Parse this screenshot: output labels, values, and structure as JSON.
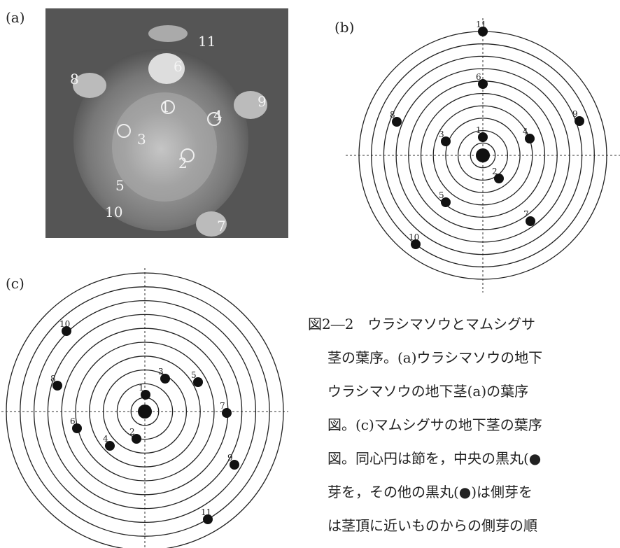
{
  "panels": {
    "a": {
      "label": "(a)",
      "points": [
        "1",
        "2",
        "3",
        "4",
        "5",
        "6",
        "7",
        "8",
        "9",
        "10",
        "11"
      ]
    },
    "b": {
      "label": "(b)",
      "points": [
        "1",
        "2",
        "3",
        "4",
        "5",
        "6",
        "7",
        "8",
        "9",
        "10",
        "11"
      ]
    },
    "c": {
      "label": "(c)",
      "points": [
        "1",
        "2",
        "3",
        "4",
        "5",
        "6",
        "7",
        "8",
        "9",
        "10",
        "11"
      ]
    }
  },
  "caption": {
    "lines": [
      "図2―2　ウラシマソウとマムシグサ",
      "茎の葉序。(a)ウラシマソウの地下",
      "ウラシマソウの地下茎(a)の葉序",
      "図。(c)マムシグサの地下茎の葉序",
      "図。同心円は節を，中央の黒丸(●",
      "芽を，その他の黒丸(●)は側芽を",
      "は茎頂に近いものからの側芽の順"
    ]
  }
}
